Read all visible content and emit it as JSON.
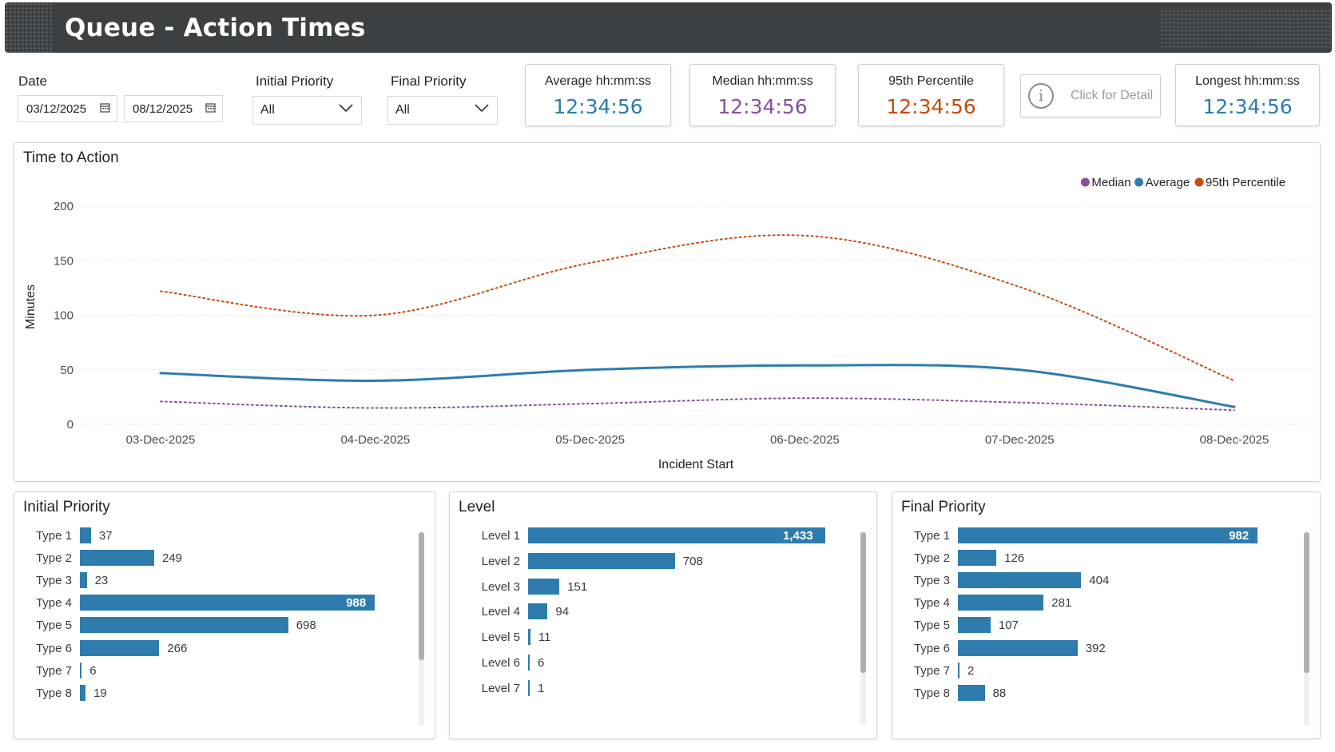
{
  "header": {
    "title": "Queue - Action Times"
  },
  "filters": {
    "date": {
      "label": "Date",
      "start": "03/12/2025",
      "end": "08/12/2025"
    },
    "initial_priority": {
      "label": "Initial Priority",
      "value": "All"
    },
    "final_priority": {
      "label": "Final Priority",
      "value": "All"
    }
  },
  "cards": {
    "average": {
      "label": "Average hh:mm:ss",
      "value": "12:34:56",
      "color": "#2e7cad"
    },
    "median": {
      "label": "Median hh:mm:ss",
      "value": "12:34:56",
      "color": "#8a4fa0"
    },
    "p95": {
      "label": "95th Percentile",
      "value": "12:34:56",
      "color": "#c84a0c"
    },
    "detail": {
      "label": "Click for Detail"
    },
    "longest": {
      "label": "Longest hh:mm:ss",
      "value": "12:34:56",
      "color": "#2e7cad"
    }
  },
  "icons": [
    "calendar-icon",
    "chevron-down-icon",
    "info-icon"
  ],
  "line_chart_title": "Time to Action",
  "chart_data": [
    {
      "type": "line",
      "title": "Time to Action",
      "xlabel": "Incident Start",
      "ylabel": "Minutes",
      "ylim": [
        0,
        200
      ],
      "yticks": [
        "0",
        "50",
        "100",
        "150",
        "200"
      ],
      "categories": [
        "03-Dec-2025",
        "04-Dec-2025",
        "05-Dec-2025",
        "06-Dec-2025",
        "07-Dec-2025",
        "08-Dec-2025"
      ],
      "legend_position": "top-right",
      "grid": true,
      "series": [
        {
          "name": "Median",
          "color": "#8a4fa0",
          "style": "dotted",
          "values": [
            21,
            15,
            19,
            24,
            20,
            13
          ]
        },
        {
          "name": "Average",
          "color": "#2e7cad",
          "style": "solid",
          "values": [
            47,
            40,
            50,
            54,
            50,
            16
          ]
        },
        {
          "name": "95th Percentile",
          "color": "#c84a0c",
          "style": "dotted",
          "values": [
            122,
            100,
            148,
            173,
            126,
            40
          ]
        }
      ]
    },
    {
      "type": "bar",
      "orientation": "horizontal",
      "title": "Initial Priority",
      "categories": [
        "Type 1",
        "Type 2",
        "Type 3",
        "Type 4",
        "Type 5",
        "Type 6",
        "Type 7",
        "Type 8"
      ],
      "values": [
        37,
        249,
        23,
        988,
        698,
        266,
        6,
        19
      ],
      "labels": [
        "37",
        "249",
        "23",
        "988",
        "698",
        "266",
        "6",
        "19"
      ],
      "max": 988
    },
    {
      "type": "bar",
      "orientation": "horizontal",
      "title": "Level",
      "categories": [
        "Level 1",
        "Level 2",
        "Level 3",
        "Level 4",
        "Level 5",
        "Level 6",
        "Level 7"
      ],
      "values": [
        1433,
        708,
        151,
        94,
        11,
        6,
        1
      ],
      "labels": [
        "1,433",
        "708",
        "151",
        "94",
        "11",
        "6",
        "1"
      ],
      "max": 1433
    },
    {
      "type": "bar",
      "orientation": "horizontal",
      "title": "Final Priority",
      "categories": [
        "Type 1",
        "Type 2",
        "Type 3",
        "Type 4",
        "Type 5",
        "Type 6",
        "Type 7",
        "Type 8"
      ],
      "values": [
        982,
        126,
        404,
        281,
        107,
        392,
        2,
        88
      ],
      "labels": [
        "982",
        "126",
        "404",
        "281",
        "107",
        "392",
        "2",
        "88"
      ],
      "max": 982
    }
  ]
}
